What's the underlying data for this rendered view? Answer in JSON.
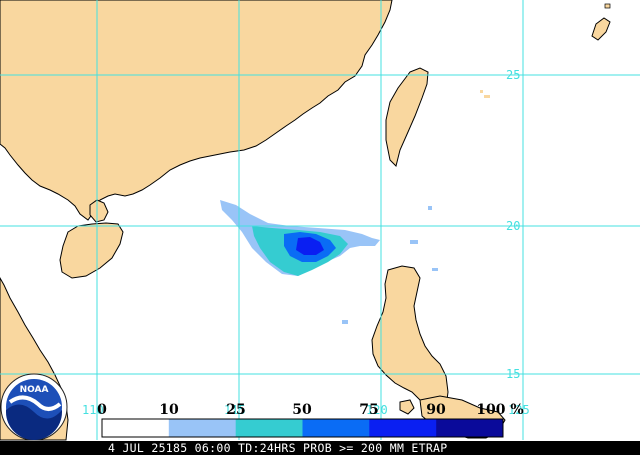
{
  "map": {
    "colors": {
      "land": "#f9d79f",
      "coast": "#000000",
      "sea": "#ffffff",
      "grid": "#44e0e0"
    },
    "grid_labels": {
      "lat": [
        "25",
        "20",
        "15"
      ],
      "lon": [
        "110",
        "115",
        "120",
        "125"
      ]
    }
  },
  "legend": {
    "values": [
      "0",
      "10",
      "25",
      "50",
      "75",
      "90",
      "100 %"
    ],
    "bins": [
      {
        "from": 0,
        "to": 10,
        "color": "#ffffff"
      },
      {
        "from": 10,
        "to": 25,
        "color": "#99c4f7"
      },
      {
        "from": 25,
        "to": 50,
        "color": "#35ccd1"
      },
      {
        "from": 50,
        "to": 75,
        "color": "#0a6cf5"
      },
      {
        "from": 75,
        "to": 90,
        "color": "#0a1ff2"
      },
      {
        "from": 90,
        "to": 100,
        "color": "#0a0a9a"
      }
    ]
  },
  "footer": {
    "text": "4 JUL 25185 06:00 TD:24HRS PROB >= 200 MM ETRAP"
  },
  "logo": {
    "text": "NOAA"
  }
}
